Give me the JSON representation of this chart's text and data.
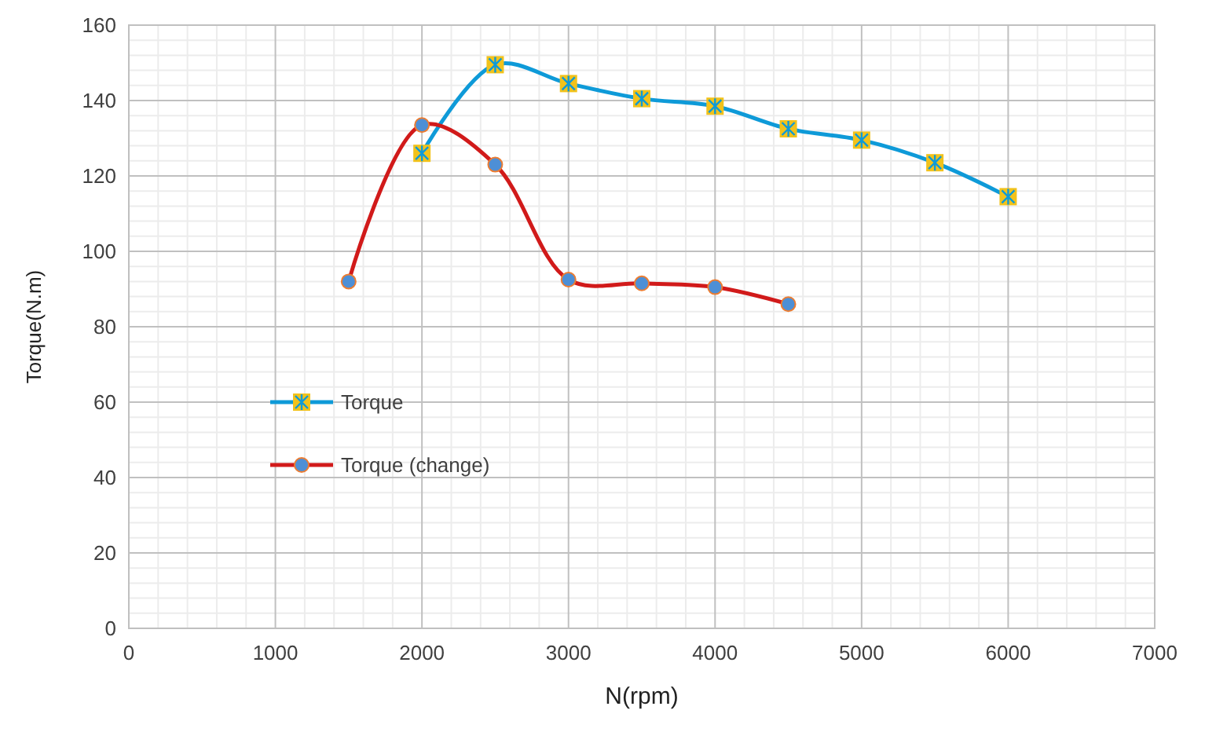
{
  "chart_data": {
    "type": "line",
    "xlabel": "N(rpm)",
    "ylabel": "Torque(N.m)",
    "xlim": [
      0,
      7000
    ],
    "xticks": [
      0,
      1000,
      2000,
      3000,
      4000,
      5000,
      6000,
      7000
    ],
    "ylim": [
      0,
      160
    ],
    "yticks": [
      0,
      20,
      40,
      60,
      80,
      100,
      120,
      140,
      160
    ],
    "grid": true,
    "legend": "left",
    "line_style": "solid",
    "series": [
      {
        "name": "Torque",
        "color": "#0e9ad8",
        "marker": "cross",
        "x": [
          2000,
          2500,
          3000,
          3500,
          4000,
          4500,
          5000,
          5500,
          6000
        ],
        "values": [
          126,
          149.5,
          144.5,
          140.5,
          138.5,
          132.5,
          129.5,
          123.5,
          114.5
        ]
      },
      {
        "name": "Torque (change)",
        "color": "#d11a1a",
        "marker": "circle",
        "x": [
          1500,
          2000,
          2500,
          3000,
          3500,
          4000,
          4500
        ],
        "values": [
          92,
          133.5,
          123,
          92.5,
          91.5,
          90.5,
          86
        ]
      }
    ]
  }
}
